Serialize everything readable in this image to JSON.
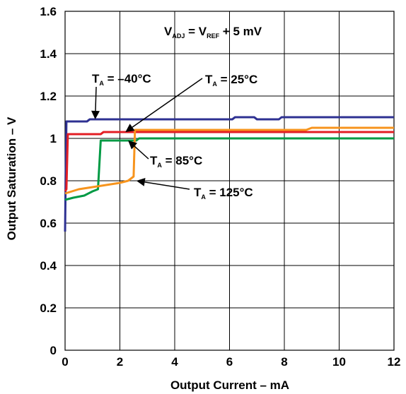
{
  "chart_data": {
    "type": "line",
    "xlabel": "Output Current – mA",
    "ylabel": "Output Saturation – V",
    "xlim": [
      0,
      12
    ],
    "ylim": [
      0,
      1.6
    ],
    "x_ticks": [
      "0",
      "2",
      "4",
      "6",
      "8",
      "10",
      "12"
    ],
    "y_ticks": [
      "0",
      "0.2",
      "0.4",
      "0.6",
      "0.8",
      "1",
      "1.2",
      "1.4",
      "1.6"
    ],
    "grid": true,
    "condition": {
      "v1": "V",
      "v1_sub": "ADJ",
      "eq": " = ",
      "v2": "V",
      "v2_sub": "REF",
      "rest": " + 5 mV"
    },
    "series": [
      {
        "name": "–40°C",
        "color": "#2e3192",
        "points": [
          [
            0,
            0.56
          ],
          [
            0.02,
            0.8
          ],
          [
            0.05,
            1.08
          ],
          [
            0.8,
            1.08
          ],
          [
            0.9,
            1.09
          ],
          [
            6.1,
            1.09
          ],
          [
            6.2,
            1.1
          ],
          [
            6.9,
            1.1
          ],
          [
            7.0,
            1.09
          ],
          [
            7.8,
            1.09
          ],
          [
            7.9,
            1.1
          ],
          [
            12,
            1.1
          ]
        ]
      },
      {
        "name": "25°C",
        "color": "#e31e24",
        "points": [
          [
            0,
            0.75
          ],
          [
            0.05,
            0.76
          ],
          [
            0.1,
            1.02
          ],
          [
            1.3,
            1.02
          ],
          [
            1.4,
            1.03
          ],
          [
            12,
            1.03
          ]
        ]
      },
      {
        "name": "85°C",
        "color": "#009a44",
        "points": [
          [
            0,
            0.71
          ],
          [
            0.3,
            0.72
          ],
          [
            0.7,
            0.73
          ],
          [
            1.0,
            0.75
          ],
          [
            1.2,
            0.76
          ],
          [
            1.3,
            0.99
          ],
          [
            2.6,
            0.99
          ],
          [
            2.7,
            1.0
          ],
          [
            12,
            1.0
          ]
        ]
      },
      {
        "name": "125°C",
        "color": "#f7941d",
        "points": [
          [
            0,
            0.74
          ],
          [
            0.5,
            0.76
          ],
          [
            1.0,
            0.77
          ],
          [
            1.5,
            0.78
          ],
          [
            2.0,
            0.79
          ],
          [
            2.3,
            0.8
          ],
          [
            2.5,
            0.82
          ],
          [
            2.55,
            1.04
          ],
          [
            8.8,
            1.04
          ],
          [
            9.0,
            1.05
          ],
          [
            12,
            1.05
          ]
        ]
      }
    ],
    "annotations": [
      {
        "prefix": "T",
        "sub": "A",
        "text": " = –40°C",
        "at": [
          1.1,
          1.09
        ]
      },
      {
        "prefix": "T",
        "sub": "A",
        "text": " = 25°C",
        "at": [
          2.2,
          1.03
        ]
      },
      {
        "prefix": "T",
        "sub": "A",
        "text": " = 85°C",
        "at": [
          2.3,
          0.99
        ]
      },
      {
        "prefix": "T",
        "sub": "A",
        "text": " = 125°C",
        "at": [
          2.6,
          0.8
        ]
      }
    ]
  }
}
